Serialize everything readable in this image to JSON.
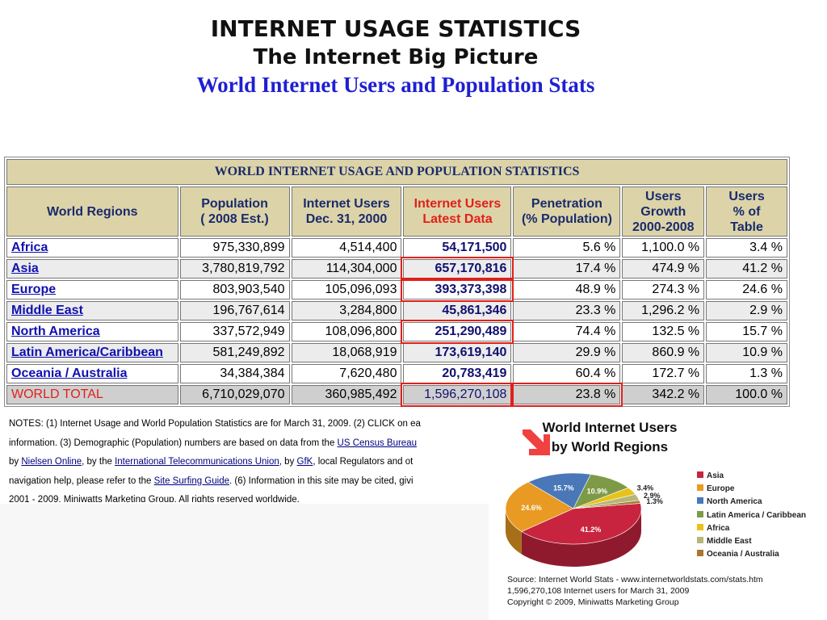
{
  "header": {
    "title": "INTERNET USAGE STATISTICS",
    "subtitle": "The Internet Big Picture",
    "subtitle2": "World Internet Users and Population Stats"
  },
  "table": {
    "title": "WORLD INTERNET USAGE AND POPULATION STATISTICS",
    "headers": [
      [
        "World Regions"
      ],
      [
        "Population",
        "( 2008 Est.)"
      ],
      [
        "Internet Users",
        "Dec. 31, 2000"
      ],
      [
        "Internet Users",
        "Latest Data"
      ],
      [
        "Penetration",
        "(% Population)"
      ],
      [
        "Users",
        "Growth",
        "2000-2008"
      ],
      [
        "Users",
        "% of",
        "Table"
      ]
    ],
    "rows": [
      [
        "Africa",
        "975,330,899",
        "4,514,400",
        "54,171,500",
        "5.6 %",
        "1,100.0 %",
        "3.4 %"
      ],
      [
        "Asia",
        "3,780,819,792",
        "114,304,000",
        "657,170,816",
        "17.4 %",
        "474.9 %",
        "41.2 %"
      ],
      [
        "Europe",
        "803,903,540",
        "105,096,093",
        "393,373,398",
        "48.9 %",
        "274.3 %",
        "24.6 %"
      ],
      [
        "Middle East",
        "196,767,614",
        "3,284,800",
        "45,861,346",
        "23.3 %",
        "1,296.2 %",
        "2.9 %"
      ],
      [
        "North America",
        "337,572,949",
        "108,096,800",
        "251,290,489",
        "74.4 %",
        "132.5 %",
        "15.7 %"
      ],
      [
        "Latin America/Caribbean",
        "581,249,892",
        "18,068,919",
        "173,619,140",
        "29.9 %",
        "860.9 %",
        "10.9 %"
      ],
      [
        "Oceania / Australia",
        "34,384,384",
        "7,620,480",
        "20,783,419",
        "60.4 %",
        "172.7 %",
        "1.3 %"
      ]
    ],
    "total": [
      "WORLD TOTAL",
      "6,710,029,070",
      "360,985,492",
      "1,596,270,108",
      "23.8 %",
      "342.2 %",
      "100.0 %"
    ]
  },
  "notes": {
    "l1": "NOTES: (1) Internet Usage and World Population Statistics are for March 31, 2009. (2) CLICK on ea",
    "l2a": "information. (3) Demographic (Population) numbers are based on data from the ",
    "l2link": "US Census Bureau",
    "l3a": "by ",
    "l3link1": "Nielsen Online",
    "l3b": ", by the ",
    "l3link2": "International Telecommunications Union",
    "l3c": ", by ",
    "l3link3": "GfK",
    "l3d": ", local Regulators and ot",
    "l4a": "navigation help, please refer to the ",
    "l4link": "Site Surfing Guide",
    "l4b": ". (6) Information in this site may be cited, givi",
    "l5": "2001 - 2009, Miniwatts Marketing Group. All rights reserved worldwide."
  },
  "chart_data": {
    "type": "pie",
    "title": "World Internet Users by World Regions",
    "title_lines": [
      "World Internet Users",
      "by World Regions"
    ],
    "slices": [
      {
        "label": "Asia",
        "value": 41.2,
        "color": "#c8243f"
      },
      {
        "label": "Europe",
        "value": 24.6,
        "color": "#e89a22"
      },
      {
        "label": "North America",
        "value": 15.7,
        "color": "#4a77b8"
      },
      {
        "label": "Latin America / Caribbean",
        "value": 10.9,
        "color": "#7e9a47"
      },
      {
        "label": "Africa",
        "value": 3.4,
        "color": "#e8c21a"
      },
      {
        "label": "Middle East",
        "value": 2.9,
        "color": "#b6b67a"
      },
      {
        "label": "Oceania / Australia",
        "value": 1.3,
        "color": "#a8782e"
      }
    ],
    "data_labels": [
      "41.2%",
      "24.6%",
      "15.7%",
      "10.9%",
      "3.4%",
      "2.9%",
      "1.3%"
    ],
    "legend_position": "right",
    "source_lines": [
      "Source: Internet World Stats -  www.internetworldstats.com/stats.htm",
      "1,596,270,108 Internet users for March 31, 2009",
      "Copyright © 2009, Miniwatts Marketing Group"
    ]
  },
  "icons": {
    "arrow": "red-arrow-icon"
  }
}
